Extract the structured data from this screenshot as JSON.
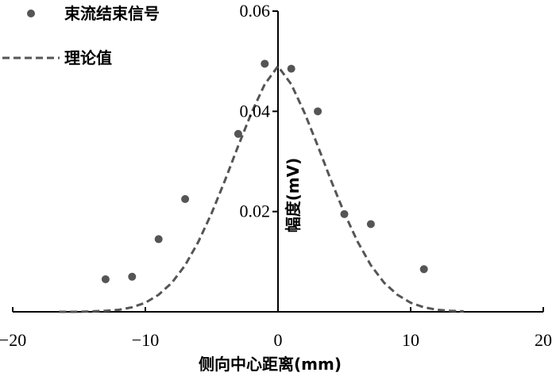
{
  "chart_data": {
    "type": "scatter",
    "x_axis": {
      "label": "侧向中心距离(mm)",
      "range": [
        -20,
        20
      ],
      "ticks": [
        -20,
        -10,
        0,
        10,
        20
      ],
      "tick_labels": [
        "−20",
        "−10",
        "0",
        "10",
        "20"
      ]
    },
    "y_axis": {
      "label": "幅度(mV)",
      "range": [
        0,
        0.06
      ],
      "ticks": [
        0.02,
        0.04,
        0.06
      ],
      "tick_labels": [
        "0.02",
        "0.04",
        "0.06"
      ]
    },
    "grid": false,
    "legend": {
      "position": "top-left",
      "entries": [
        {
          "label": "束流结束信号",
          "marker": "dot"
        },
        {
          "label": "理论值",
          "marker": "dashed-line"
        }
      ]
    },
    "series": [
      {
        "name": "束流结束信号",
        "type": "scatter",
        "color": "#555555",
        "x": [
          -13,
          -11,
          -9,
          -7,
          -3,
          -1,
          1,
          3,
          5,
          7,
          11
        ],
        "y": [
          0.0065,
          0.007,
          0.0145,
          0.0225,
          0.0355,
          0.0495,
          0.0485,
          0.04,
          0.0195,
          0.0175,
          0.0085
        ]
      },
      {
        "name": "理论值",
        "type": "line",
        "style": "dashed",
        "color": "#555555",
        "x": [
          -16.5,
          -15,
          -14,
          -13,
          -12,
          -11,
          -10,
          -9,
          -8,
          -7,
          -6,
          -5,
          -4,
          -3,
          -2,
          -1,
          0,
          1,
          2,
          3,
          4,
          5,
          6,
          7,
          8,
          9,
          10,
          11,
          12,
          13,
          14
        ],
        "y": [
          0.0,
          0.0,
          0.0001,
          0.0002,
          0.0004,
          0.0009,
          0.0018,
          0.0034,
          0.0058,
          0.0093,
          0.014,
          0.0197,
          0.0262,
          0.0331,
          0.0397,
          0.0454,
          0.049,
          0.0454,
          0.0397,
          0.0331,
          0.0262,
          0.0197,
          0.014,
          0.0093,
          0.0058,
          0.0034,
          0.0018,
          0.0009,
          0.0004,
          0.0002,
          0.0001
        ]
      }
    ]
  }
}
